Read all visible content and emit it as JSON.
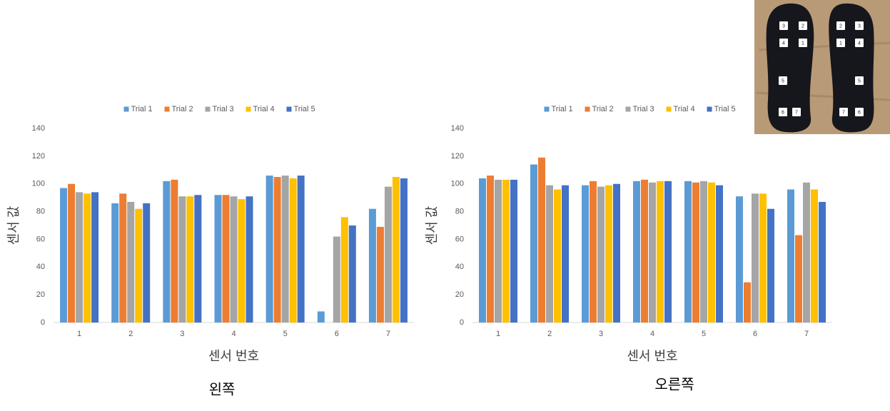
{
  "chart_data": [
    {
      "type": "bar",
      "title": "왼쪽",
      "xlabel": "센서 번호",
      "ylabel": "센서 값",
      "categories": [
        "1",
        "2",
        "3",
        "4",
        "5",
        "6",
        "7"
      ],
      "series": [
        {
          "name": "Trial 1",
          "color": "#5b9bd5",
          "values": [
            97,
            86,
            102,
            92,
            106,
            8,
            82
          ]
        },
        {
          "name": "Trial 2",
          "color": "#ed7d31",
          "values": [
            100,
            93,
            103,
            92,
            105,
            0,
            69
          ]
        },
        {
          "name": "Trial 3",
          "color": "#a5a5a5",
          "values": [
            94,
            87,
            91,
            91,
            106,
            62,
            98
          ]
        },
        {
          "name": "Trial 4",
          "color": "#ffc000",
          "values": [
            93,
            82,
            91,
            89,
            104,
            76,
            105
          ]
        },
        {
          "name": "Trial 5",
          "color": "#4472c4",
          "values": [
            94,
            86,
            92,
            91,
            106,
            70,
            104
          ]
        }
      ],
      "ylim": [
        0,
        140
      ],
      "yticks": [
        0,
        20,
        40,
        60,
        80,
        100,
        120,
        140
      ],
      "grid": false,
      "legend": "top"
    },
    {
      "type": "bar",
      "title": "오른쪽",
      "xlabel": "센서 번호",
      "ylabel": "센서 값",
      "categories": [
        "1",
        "2",
        "3",
        "4",
        "5",
        "6",
        "7"
      ],
      "series": [
        {
          "name": "Trial 1",
          "color": "#5b9bd5",
          "values": [
            104,
            114,
            99,
            102,
            102,
            91,
            96
          ]
        },
        {
          "name": "Trial 2",
          "color": "#ed7d31",
          "values": [
            106,
            119,
            102,
            103,
            101,
            29,
            63
          ]
        },
        {
          "name": "Trial 3",
          "color": "#a5a5a5",
          "values": [
            103,
            99,
            98,
            101,
            102,
            93,
            101
          ]
        },
        {
          "name": "Trial 4",
          "color": "#ffc000",
          "values": [
            103,
            96,
            99,
            102,
            101,
            93,
            96
          ]
        },
        {
          "name": "Trial 5",
          "color": "#4472c4",
          "values": [
            103,
            99,
            100,
            102,
            99,
            82,
            87
          ]
        }
      ],
      "ylim": [
        0,
        140
      ],
      "yticks": [
        0,
        20,
        40,
        60,
        80,
        100,
        120,
        140
      ],
      "grid": false,
      "legend": "top"
    }
  ],
  "photo": {
    "left": [
      "3",
      "2",
      "4",
      "1",
      "5",
      "6",
      "7"
    ],
    "right": [
      "2",
      "3",
      "1",
      "4",
      "5",
      "7",
      "6"
    ]
  }
}
